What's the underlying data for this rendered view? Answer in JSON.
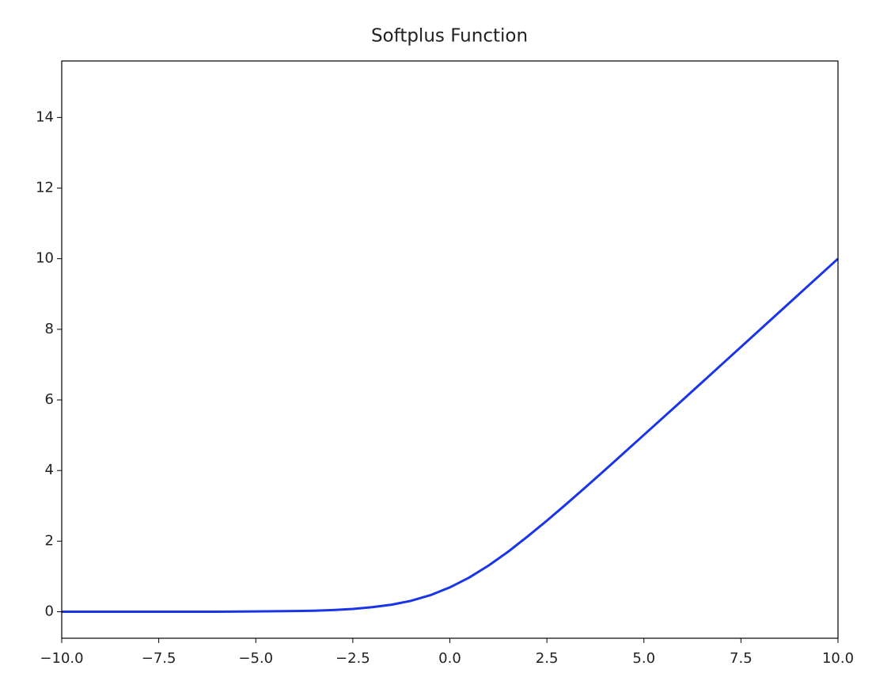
{
  "chart_data": {
    "type": "line",
    "title": "Softplus Function",
    "x": [
      -10,
      -9,
      -8,
      -7,
      -6,
      -5,
      -4,
      -3.5,
      -3,
      -2.5,
      -2,
      -1.5,
      -1,
      -0.5,
      0,
      0.5,
      1,
      1.5,
      2,
      2.5,
      3,
      3.5,
      4,
      5,
      6,
      7,
      8,
      9,
      10
    ],
    "series": [
      {
        "color": "#1a35e8",
        "values": [
          0.0,
          0.0,
          0.0,
          0.0,
          0.0,
          0.01,
          0.02,
          0.03,
          0.05,
          0.08,
          0.13,
          0.2,
          0.31,
          0.47,
          0.69,
          0.97,
          1.31,
          1.7,
          2.13,
          2.58,
          3.05,
          3.53,
          4.02,
          5.01,
          6.0,
          7.0,
          8.0,
          9.0,
          10.0
        ]
      }
    ],
    "xlim": [
      -10,
      10
    ],
    "xticks": [
      {
        "value": -10,
        "label": "−10.0"
      },
      {
        "value": -7.5,
        "label": "−7.5"
      },
      {
        "value": -5,
        "label": "−5.0"
      },
      {
        "value": -2.5,
        "label": "−2.5"
      },
      {
        "value": 0,
        "label": "0.0"
      },
      {
        "value": 2.5,
        "label": "2.5"
      },
      {
        "value": 5,
        "label": "5.0"
      },
      {
        "value": 7.5,
        "label": "7.5"
      },
      {
        "value": 10,
        "label": "10.0"
      }
    ],
    "ylim": [
      -0.75,
      15.6
    ],
    "yticks": [
      0,
      2,
      4,
      6,
      8,
      10,
      12,
      14
    ],
    "grid": false
  }
}
